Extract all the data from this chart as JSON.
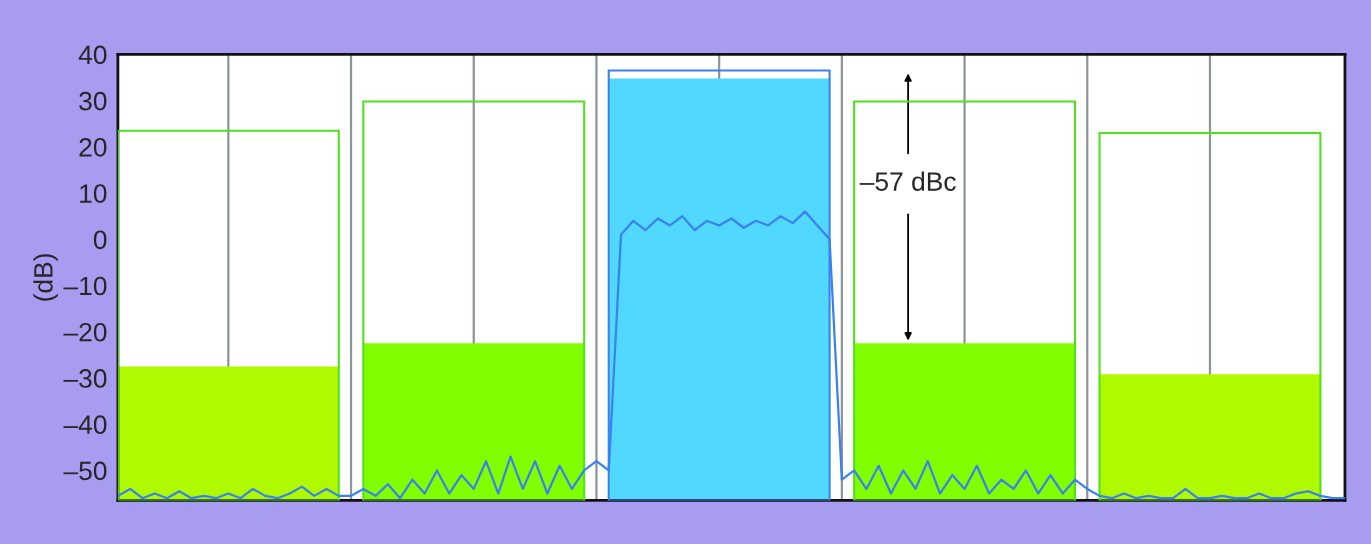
{
  "chart_data": [
    {
      "type": "bar",
      "ylabel": "(dB)",
      "categories": [
        null,
        null,
        null,
        null,
        null
      ],
      "ylim": [
        -56.5,
        40
      ],
      "yticks": [
        {
          "value": -50,
          "label": "–50"
        },
        {
          "value": -40,
          "label": "–40"
        },
        {
          "value": -30,
          "label": "–30"
        },
        {
          "value": -20,
          "label": "–20"
        },
        {
          "value": -10,
          "label": "–10"
        },
        0,
        10,
        20,
        30,
        40
      ],
      "grid": "x",
      "series": [
        {
          "colors": [
            "#b0fa00",
            "#80ff00",
            "#50d8ff",
            "#80ff00",
            "#b0fa00"
          ],
          "base": [
            -56.5,
            -56.5,
            -56.5,
            -56.5,
            -56.5
          ],
          "values": [
            29,
            34,
            91.3,
            34,
            27.3
          ]
        }
      ],
      "annotations": [
        "–57 dBc"
      ]
    },
    {
      "type": "bar",
      "categories": [
        null,
        null,
        null,
        null,
        null
      ],
      "ylim": [
        -56.5,
        40
      ],
      "tick_labels": false,
      "series": [
        {
          "line_style": "solid",
          "colors": [
            "#50e020",
            "#50e020",
            "#3a80f0",
            "#50e020",
            "#50e020"
          ],
          "base": [
            -56.5,
            -56.5,
            -56.5,
            -56.5,
            -56.5
          ],
          "values": [
            80,
            86.3,
            93,
            86.3,
            79.5
          ]
        }
      ]
    },
    {
      "type": "line",
      "categories": [
        null,
        null,
        null,
        null,
        null,
        null,
        null,
        null,
        null,
        null,
        null,
        null,
        null,
        null,
        null,
        null,
        null,
        null,
        null,
        null,
        null,
        null,
        null,
        null,
        null,
        null,
        null,
        null,
        null,
        null,
        null,
        null,
        null,
        null,
        null,
        null,
        null,
        null,
        null,
        null,
        null,
        null,
        null,
        null,
        null,
        null,
        null,
        null,
        null,
        null,
        null,
        null,
        null,
        null,
        null,
        null,
        null,
        null,
        null,
        null,
        null,
        null,
        null,
        null,
        null,
        null,
        null,
        null,
        null,
        null,
        null,
        null,
        null,
        null,
        null,
        null,
        null,
        null,
        null,
        null,
        null,
        null,
        null,
        null,
        null,
        null,
        null,
        null,
        null,
        null,
        null,
        null,
        null,
        null,
        null,
        null,
        null,
        null,
        null,
        null,
        null
      ],
      "ylim": [
        -56.5,
        40
      ],
      "tick_labels": false,
      "series": [
        {
          "color": "#3a80f0",
          "values": [
            -55.5,
            -54,
            -56,
            -55,
            -56,
            -54.5,
            -56,
            -55.5,
            -56,
            -55,
            -56,
            -54,
            -55.5,
            -56,
            -55,
            -53.5,
            -55.5,
            -54,
            -55.5,
            -55.5,
            -54,
            -55.5,
            -53,
            -56,
            -52,
            -55,
            -50,
            -55,
            -51,
            -54,
            -48,
            -55,
            -47,
            -54,
            -48,
            -55,
            -49,
            -54,
            -50,
            -48,
            -50,
            1,
            4,
            2,
            4.5,
            3,
            5,
            2,
            4,
            3,
            4.5,
            2.5,
            4,
            3,
            5,
            3.5,
            6,
            3,
            0,
            -52,
            -50,
            -54,
            -49,
            -55,
            -50,
            -54,
            -48,
            -55,
            -51,
            -54,
            -49,
            -55,
            -52,
            -54,
            -50,
            -55,
            -51,
            -55,
            -52,
            -54,
            -55.5,
            -56,
            -55,
            -56,
            -55.5,
            -56,
            -56,
            -54,
            -56,
            -56,
            -55.5,
            -56,
            -56,
            -55,
            -56,
            -56,
            -55,
            -54.5,
            -55.5,
            -56,
            -56
          ]
        }
      ]
    }
  ]
}
